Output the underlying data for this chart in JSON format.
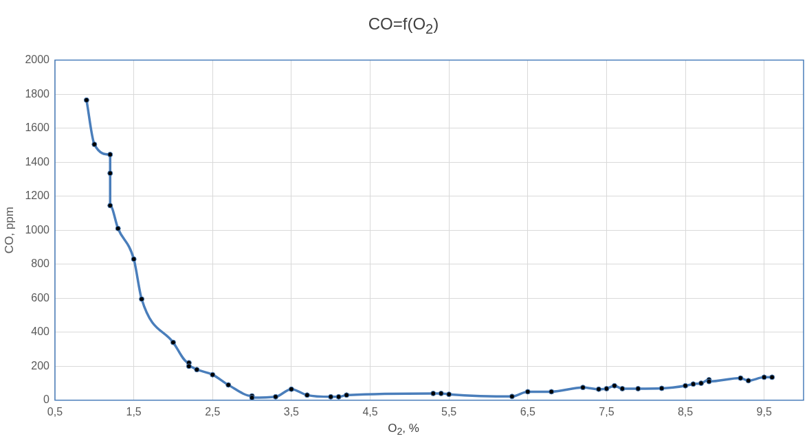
{
  "chart_data": {
    "type": "line",
    "title": "CO=f(O$_{2}$)",
    "xlabel": "O$_{2}$, %",
    "ylabel": "CO, ppm",
    "x": [
      0.9,
      1.0,
      1.2,
      1.2,
      1.2,
      1.3,
      1.5,
      1.6,
      2.0,
      2.2,
      2.2,
      2.3,
      2.5,
      2.7,
      3.0,
      3.0,
      3.3,
      3.5,
      3.7,
      4.0,
      4.1,
      4.2,
      5.3,
      5.4,
      5.5,
      6.3,
      6.5,
      6.8,
      7.2,
      7.4,
      7.5,
      7.6,
      7.7,
      7.9,
      8.2,
      8.5,
      8.6,
      8.7,
      8.8,
      8.8,
      9.2,
      9.3,
      9.5,
      9.6
    ],
    "series": [
      {
        "color": "#4a7ebb",
        "values": [
          1765,
          1505,
          1445,
          1335,
          1145,
          1010,
          830,
          595,
          340,
          220,
          200,
          180,
          150,
          90,
          25,
          15,
          20,
          65,
          30,
          20,
          20,
          30,
          40,
          40,
          35,
          22,
          50,
          50,
          75,
          65,
          68,
          85,
          68,
          68,
          70,
          85,
          95,
          100,
          120,
          110,
          130,
          115,
          135,
          135
        ]
      }
    ],
    "xlim": [
      0.5,
      10
    ],
    "ylim": [
      0,
      2000
    ],
    "xticks": [
      {
        "value": 0.5,
        "label": "0,5"
      },
      {
        "value": 1.5,
        "label": "1,5"
      },
      {
        "value": 2.5,
        "label": "2,5"
      },
      {
        "value": 3.5,
        "label": "3,5"
      },
      {
        "value": 4.5,
        "label": "4,5"
      },
      {
        "value": 5.5,
        "label": "5,5"
      },
      {
        "value": 6.5,
        "label": "6,5"
      },
      {
        "value": 7.5,
        "label": "7,5"
      },
      {
        "value": 8.5,
        "label": "8,5"
      },
      {
        "value": 9.5,
        "label": "9,5"
      }
    ],
    "yticks": [
      0,
      200,
      400,
      600,
      800,
      1000,
      1200,
      1400,
      1600,
      1800,
      2000
    ],
    "grid": true,
    "legend": false,
    "marker": "circle",
    "line_style": "solid"
  }
}
